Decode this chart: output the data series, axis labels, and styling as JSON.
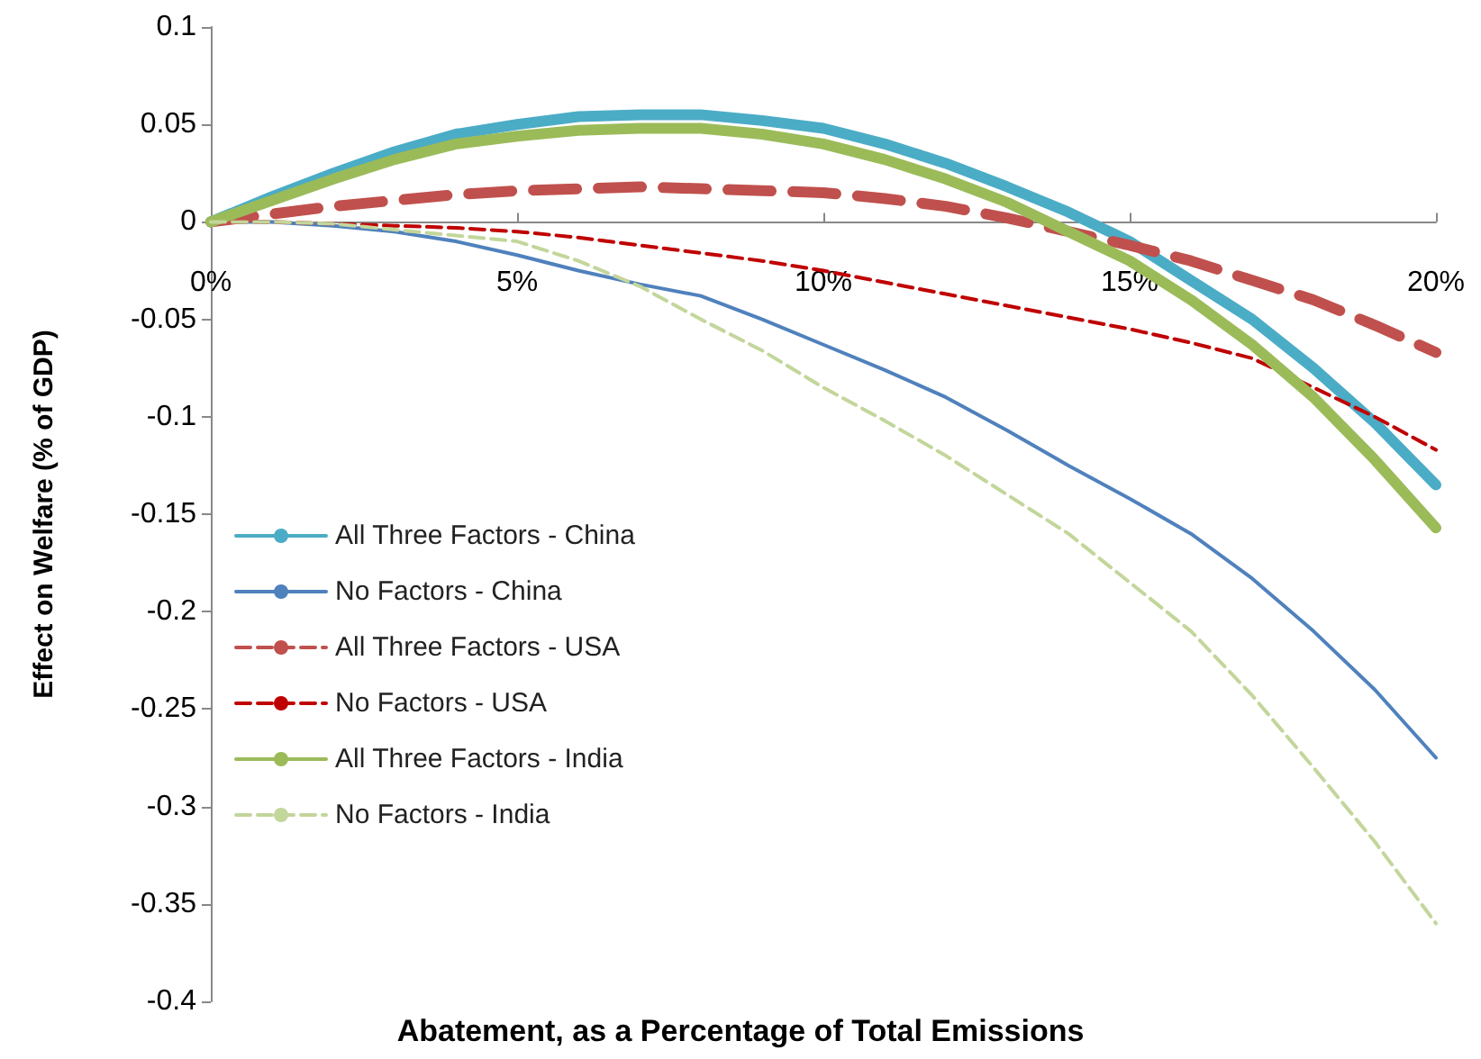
{
  "chart_data": {
    "type": "line",
    "xlabel": "Abatement, as a Percentage of Total Emissions",
    "ylabel": "Effect on Welfare (% of GDP)",
    "x": [
      0,
      1,
      2,
      3,
      4,
      5,
      6,
      7,
      8,
      9,
      10,
      11,
      12,
      13,
      14,
      15,
      16,
      17,
      18,
      19,
      20
    ],
    "series": [
      {
        "name": "All Three Factors - China",
        "color": "#4bacc6",
        "line_style": "solid",
        "values": [
          0,
          0.013,
          0.025,
          0.036,
          0.045,
          0.05,
          0.054,
          0.055,
          0.055,
          0.052,
          0.048,
          0.04,
          0.03,
          0.018,
          0.005,
          -0.01,
          -0.03,
          -0.05,
          -0.075,
          -0.103,
          -0.135
        ]
      },
      {
        "name": "No Factors - China",
        "color": "#4f81bd",
        "line_style": "solid",
        "values": [
          0,
          0,
          -0.002,
          -0.005,
          -0.01,
          -0.017,
          -0.025,
          -0.032,
          -0.038,
          -0.05,
          -0.063,
          -0.076,
          -0.09,
          -0.107,
          -0.125,
          -0.142,
          -0.16,
          -0.183,
          -0.21,
          -0.24,
          -0.275
        ]
      },
      {
        "name": "All Three Factors - USA",
        "color": "#c0504d",
        "line_style": "dashed",
        "values": [
          0,
          0.004,
          0.008,
          0.011,
          0.014,
          0.016,
          0.017,
          0.018,
          0.017,
          0.016,
          0.015,
          0.012,
          0.008,
          0.002,
          -0.005,
          -0.012,
          -0.02,
          -0.03,
          -0.04,
          -0.053,
          -0.067
        ]
      },
      {
        "name": "No Factors - USA",
        "color": "#c00000",
        "line_style": "dashed",
        "values": [
          0,
          0,
          -0.001,
          -0.002,
          -0.003,
          -0.005,
          -0.008,
          -0.012,
          -0.016,
          -0.02,
          -0.025,
          -0.031,
          -0.037,
          -0.043,
          -0.049,
          -0.055,
          -0.062,
          -0.07,
          -0.085,
          -0.1,
          -0.117
        ]
      },
      {
        "name": "All Three Factors - India",
        "color": "#9bbb59",
        "line_style": "solid",
        "values": [
          0,
          0.011,
          0.022,
          0.032,
          0.04,
          0.044,
          0.047,
          0.048,
          0.048,
          0.045,
          0.04,
          0.032,
          0.022,
          0.01,
          -0.005,
          -0.02,
          -0.04,
          -0.063,
          -0.09,
          -0.122,
          -0.157
        ]
      },
      {
        "name": "No Factors - India",
        "color": "#c3d69b",
        "line_style": "dashed",
        "values": [
          0,
          0,
          -0.001,
          -0.004,
          -0.007,
          -0.01,
          -0.02,
          -0.033,
          -0.05,
          -0.066,
          -0.085,
          -0.102,
          -0.12,
          -0.14,
          -0.16,
          -0.185,
          -0.21,
          -0.243,
          -0.28,
          -0.318,
          -0.36
        ]
      }
    ],
    "xlim": [
      0,
      20
    ],
    "xticks": [
      {
        "value": 0,
        "label": "0%"
      },
      {
        "value": 5,
        "label": "5%"
      },
      {
        "value": 10,
        "label": "10%"
      },
      {
        "value": 15,
        "label": "15%"
      },
      {
        "value": 20,
        "label": "20%"
      }
    ],
    "ylim": [
      -0.4,
      0.1
    ],
    "yticks": [
      0.1,
      0.05,
      0,
      -0.05,
      -0.1,
      -0.15,
      -0.2,
      -0.25,
      -0.3,
      -0.35,
      -0.4
    ],
    "grid": false,
    "legend": "left",
    "marker": "none"
  }
}
